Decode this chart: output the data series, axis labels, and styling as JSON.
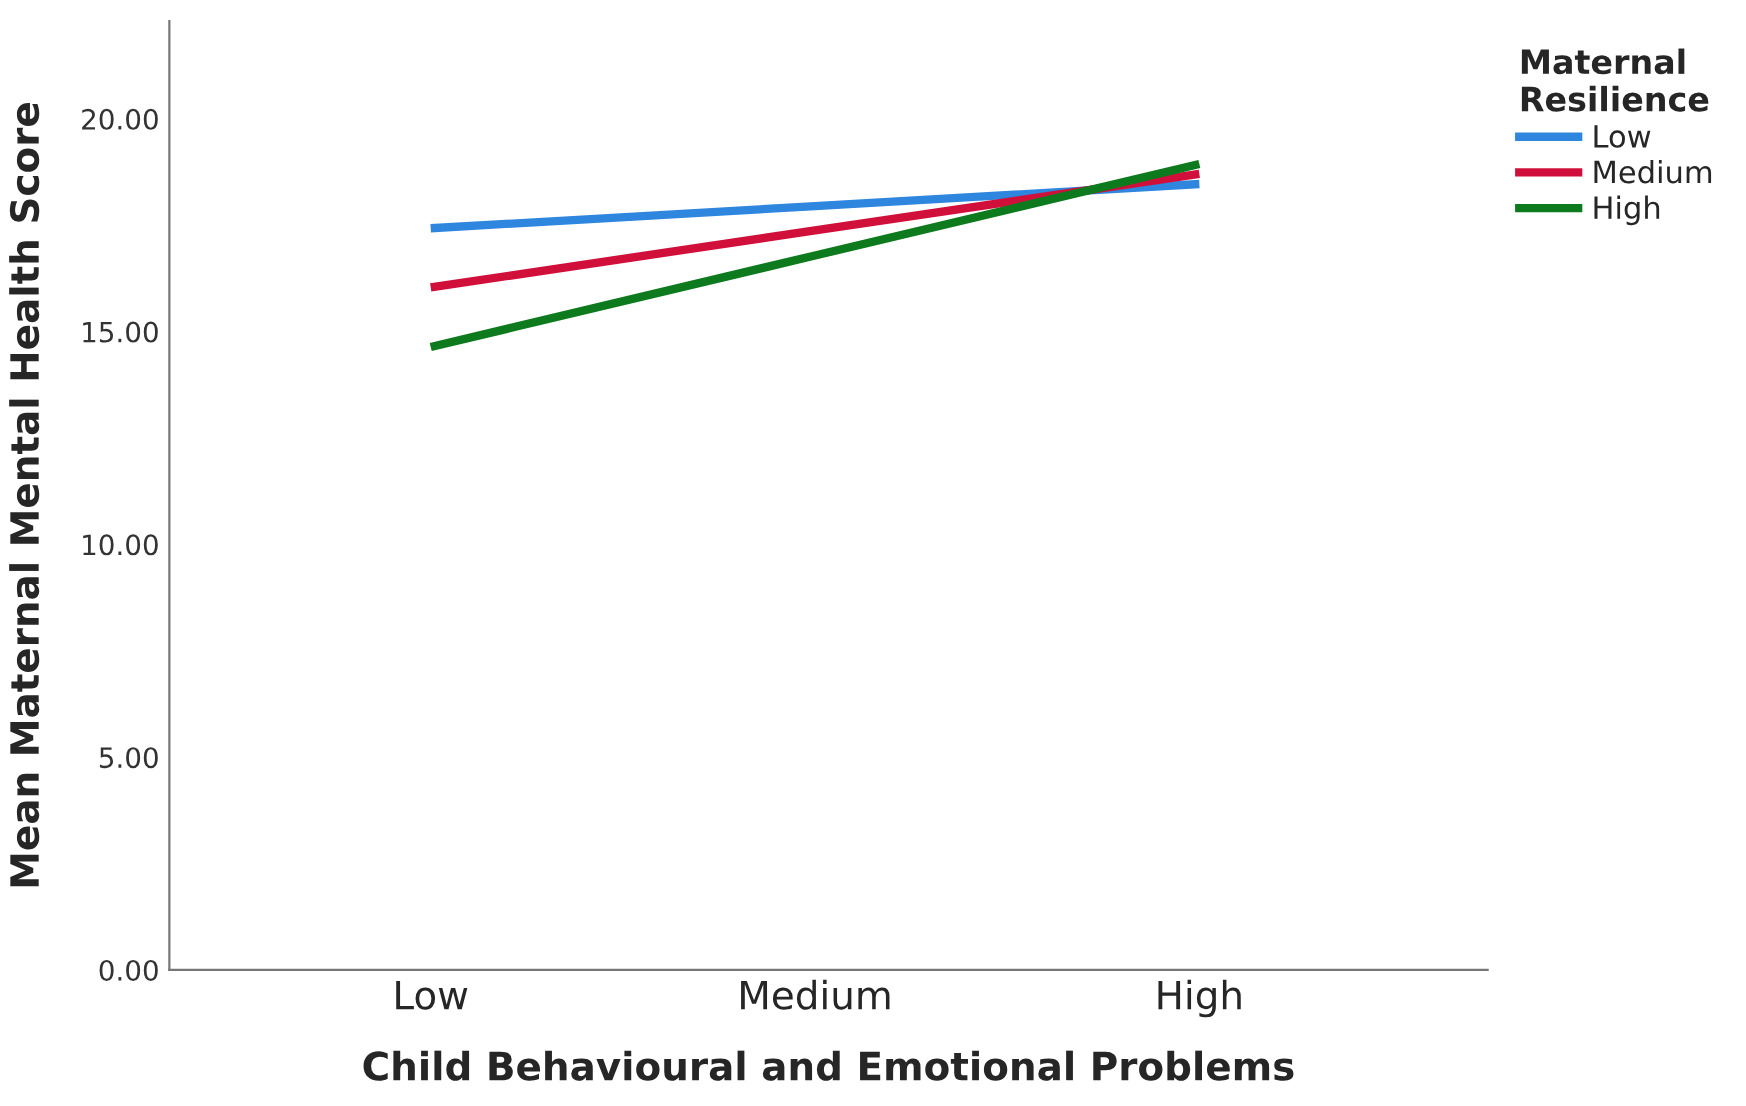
{
  "chart_data": {
    "type": "line",
    "xlabel": "Child Behavioural and Emotional Problems",
    "ylabel": "Mean Maternal Mental Health Score",
    "legend_title": "Maternal\nResilience",
    "categories": [
      "Low",
      "Medium",
      "High"
    ],
    "series": [
      {
        "name": "Low",
        "color": "#2e86de",
        "values": [
          17.43,
          17.95,
          18.47
        ]
      },
      {
        "name": "Medium",
        "color": "#d0103a",
        "values": [
          16.04,
          17.38,
          18.71
        ]
      },
      {
        "name": "High",
        "color": "#0e7a1e",
        "values": [
          14.64,
          16.79,
          18.94
        ]
      }
    ],
    "ylim": [
      0,
      22.3
    ],
    "yticks": [
      {
        "value": 0,
        "label": "0.00"
      },
      {
        "value": 5,
        "label": "5.00"
      },
      {
        "value": 10,
        "label": "10.00"
      },
      {
        "value": 15,
        "label": "15.00"
      },
      {
        "value": 20,
        "label": "20.00"
      }
    ],
    "grid": false,
    "legend": "top right",
    "marker": "none",
    "line_style": "solid"
  }
}
